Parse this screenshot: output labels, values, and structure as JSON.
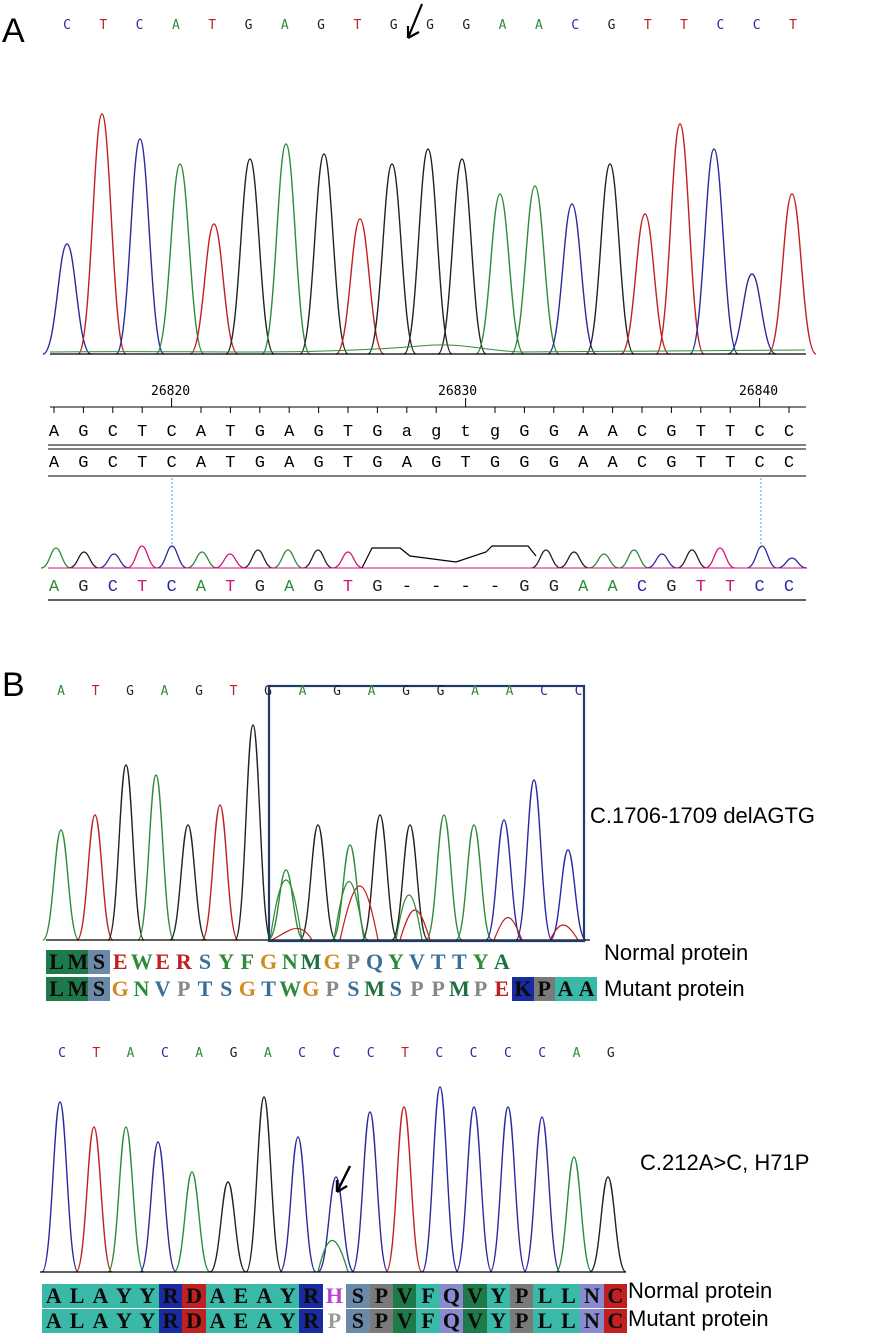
{
  "panelA": {
    "label": "A",
    "sequence": [
      "C",
      "T",
      "C",
      "A",
      "T",
      "G",
      "A",
      "G",
      "T",
      "G",
      "G",
      "G",
      "A",
      "A",
      "C",
      "G",
      "T",
      "T",
      "C",
      "C",
      "T"
    ],
    "ruler": {
      "ticks": [
        "26820",
        "26830",
        "26840"
      ],
      "values": [
        26820,
        26830,
        26840
      ]
    },
    "reference": [
      "A",
      "G",
      "C",
      "T",
      "C",
      "A",
      "T",
      "G",
      "A",
      "G",
      "T",
      "G",
      "a",
      "g",
      "t",
      "g",
      "G",
      "G",
      "A",
      "A",
      "C",
      "G",
      "T",
      "T",
      "C",
      "C"
    ],
    "consensus": [
      "A",
      "G",
      "C",
      "T",
      "C",
      "A",
      "T",
      "G",
      "A",
      "G",
      "T",
      "G",
      "A",
      "G",
      "T",
      "G",
      "G",
      "G",
      "A",
      "A",
      "C",
      "G",
      "T",
      "T",
      "C",
      "C"
    ],
    "sample": [
      "A",
      "G",
      "C",
      "T",
      "C",
      "A",
      "T",
      "G",
      "A",
      "G",
      "T",
      "G",
      "-",
      "-",
      "-",
      "-",
      "G",
      "G",
      "A",
      "A",
      "C",
      "G",
      "T",
      "T",
      "C",
      "C"
    ]
  },
  "panelB": {
    "label": "B",
    "trace1": {
      "sequence": [
        "A",
        "T",
        "G",
        "A",
        "G",
        "T",
        "G",
        "A",
        "G",
        "A",
        "G",
        "G",
        "A",
        "A",
        "C",
        "C"
      ],
      "caption": "C.1706-1709 delAGTG",
      "normal_protein": [
        "L",
        "M",
        "S",
        "E",
        "W",
        "E",
        "R",
        "S",
        "Y",
        "F",
        "G",
        "N",
        "M",
        "G",
        "P",
        "Q",
        "Y",
        "V",
        "T",
        "T",
        "Y",
        "A"
      ],
      "mutant_protein": [
        "L",
        "M",
        "S",
        "G",
        "N",
        "V",
        "P",
        "T",
        "S",
        "G",
        "T",
        "W",
        "G",
        "P",
        "S",
        "M",
        "S",
        "P",
        "P",
        "M",
        "P",
        "E",
        "K",
        "P",
        "A",
        "A"
      ],
      "normal_label": "Normal protein",
      "mutant_label": "Mutant protein"
    },
    "trace2": {
      "sequence": [
        "C",
        "T",
        "A",
        "C",
        "A",
        "G",
        "A",
        "C",
        "C",
        "C",
        "T",
        "C",
        "C",
        "C",
        "C",
        "A",
        "G"
      ],
      "caption": "C.212A>C, H71P",
      "normal_protein": [
        "A",
        "L",
        "A",
        "Y",
        "Y",
        "R",
        "D",
        "A",
        "E",
        "A",
        "Y",
        "R",
        "H",
        "S",
        "P",
        "V",
        "F",
        "Q",
        "V",
        "Y",
        "P",
        "L",
        "L",
        "N",
        "C"
      ],
      "mutant_protein": [
        "A",
        "L",
        "A",
        "Y",
        "Y",
        "R",
        "D",
        "A",
        "E",
        "A",
        "Y",
        "R",
        "P",
        "S",
        "P",
        "V",
        "F",
        "Q",
        "V",
        "Y",
        "P",
        "L",
        "L",
        "N",
        "C"
      ],
      "normal_label": "Normal protein",
      "mutant_label": "Mutant protein"
    }
  },
  "colors": {
    "A": "#2e8b3a",
    "C": "#2a2aa0",
    "G": "#222222",
    "T": "#c02020",
    "frame": "#1f3a6e"
  }
}
